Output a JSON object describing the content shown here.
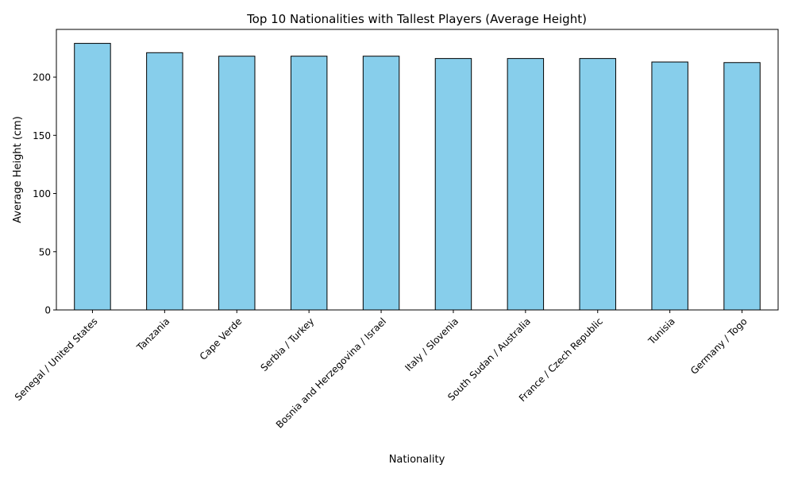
{
  "chart_data": {
    "type": "bar",
    "title": "Top 10 Nationalities with Tallest Players (Average Height)",
    "xlabel": "Nationality",
    "ylabel": "Average Height (cm)",
    "categories": [
      "Senegal / United States",
      "Tanzania",
      "Cape Verde",
      "Serbia / Turkey",
      "Bosnia and Herzegovina / Israel",
      "Italy / Slovenia",
      "South Sudan / Australia",
      "France / Czech Republic",
      "Tunisia",
      "Germany / Togo"
    ],
    "values": [
      229,
      221,
      218,
      218,
      218,
      216,
      216,
      216,
      213,
      212.5
    ],
    "ylim": [
      0,
      241
    ],
    "yticks": [
      0,
      50,
      100,
      150,
      200
    ],
    "grid": false,
    "legend": "none",
    "bar_color": "#87CEEB",
    "edge_color": "#000000"
  }
}
